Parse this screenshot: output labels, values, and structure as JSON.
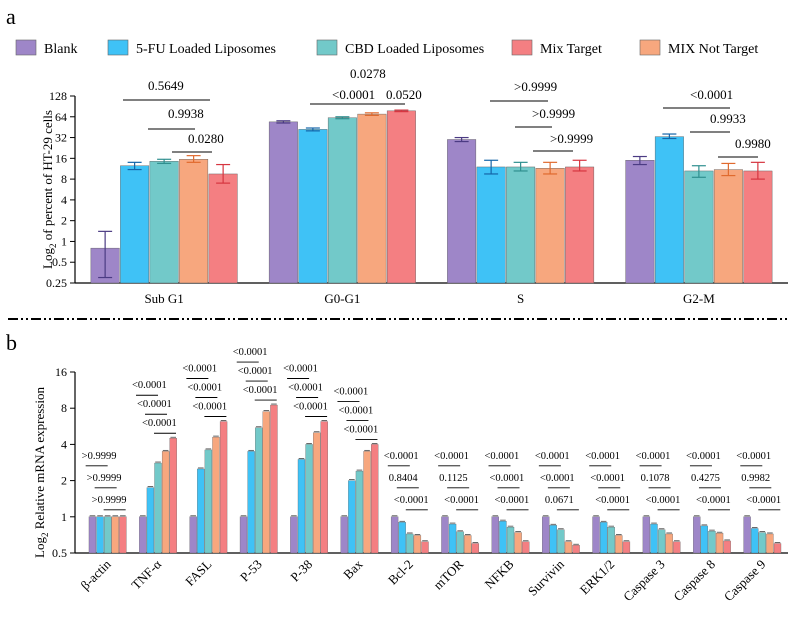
{
  "panel_a_letter": "a",
  "panel_b_letter": "b",
  "chart_data": [
    {
      "type": "bar",
      "panel": "a",
      "ylabel_main": "Log",
      "ylabel_sub": "2",
      "ylabel_rest": " of percent of  HT-29 cells",
      "yscale": "log2",
      "ylim": [
        0.25,
        128
      ],
      "yticks": [
        "0.25",
        "0.5",
        "1",
        "2",
        "4",
        "8",
        "16",
        "32",
        "64",
        "128"
      ],
      "categories": [
        "Sub G1",
        "G0-G1",
        "S",
        "G2-M"
      ],
      "series": [
        {
          "name": "Blank",
          "color": "#9e86c8",
          "values": [
            0.8,
            54,
            30,
            15
          ],
          "err_low": [
            0.3,
            52,
            28,
            13
          ],
          "err_high": [
            1.4,
            56,
            32,
            17
          ]
        },
        {
          "name": "5-FU Loaded Liposomes",
          "color": "#3fc2f6",
          "values": [
            12.5,
            42,
            12,
            33
          ],
          "err_low": [
            11,
            40,
            9.5,
            31
          ],
          "err_high": [
            14,
            44,
            15,
            36
          ]
        },
        {
          "name": "CBD Loaded Liposomes",
          "color": "#72c9c9",
          "values": [
            14.5,
            62,
            12,
            10.5
          ],
          "err_low": [
            13.5,
            60,
            10.5,
            8.5
          ],
          "err_high": [
            15.5,
            64,
            14,
            12.5
          ]
        },
        {
          "name": "MIX Not Target",
          "color": "#f7a77e",
          "values": [
            15.5,
            70,
            11.5,
            11
          ],
          "err_low": [
            14,
            67,
            9.5,
            9
          ],
          "err_high": [
            17.5,
            73,
            14,
            13.5
          ]
        },
        {
          "name": "Mix Target",
          "color": "#f47f82",
          "values": [
            9.5,
            78,
            12,
            10.5
          ],
          "err_low": [
            7,
            76,
            10.5,
            8
          ],
          "err_high": [
            13,
            80,
            15,
            14
          ]
        }
      ],
      "legend_order": [
        "Blank",
        "5-FU Loaded Liposomes",
        "CBD Loaded Liposomes",
        "Mix Target",
        "MIX  Not Target"
      ],
      "legend_placement": "top",
      "annotations": [
        {
          "text": "0.5649",
          "group": 0
        },
        {
          "text": "0.9938",
          "group": 0
        },
        {
          "text": "0.0280",
          "group": 0
        },
        {
          "text": "0.0278",
          "group": 1
        },
        {
          "text": "<0.0001",
          "group": 1
        },
        {
          "text": "0.0520",
          "group": 1
        },
        {
          "text": ">0.9999",
          "group": 2
        },
        {
          "text": ">0.9999",
          "group": 2
        },
        {
          "text": ">0.9999",
          "group": 2
        },
        {
          "text": "<0.0001",
          "group": 3
        },
        {
          "text": "0.9933",
          "group": 3
        },
        {
          "text": "0.9980",
          "group": 3
        }
      ]
    },
    {
      "type": "bar",
      "panel": "b",
      "ylabel_main": "Log",
      "ylabel_sub": "2",
      "ylabel_rest": " Relative mRNA expression",
      "yscale": "log2",
      "ylim": [
        0.5,
        16
      ],
      "yticks": [
        "0.5",
        "1",
        "2",
        "4",
        "8",
        "16"
      ],
      "categories": [
        "β-actin",
        "TNF-α",
        "FASL",
        "P-53",
        "P-38",
        "Bax",
        "Bcl-2",
        "mTOR",
        "NFKB",
        "Survivin",
        "ERK1/2",
        "Caspase 3",
        "Caspase 8",
        "Caspase 9"
      ],
      "series": [
        {
          "name": "Blank",
          "color": "#9e86c8",
          "values": [
            1,
            1,
            1,
            1,
            1,
            1,
            1,
            1,
            1,
            1,
            1,
            1,
            1,
            1
          ]
        },
        {
          "name": "5-FU Loaded Liposomes",
          "color": "#3fc2f6",
          "values": [
            1,
            1.75,
            2.5,
            3.5,
            3.0,
            2.0,
            0.9,
            0.87,
            0.92,
            0.85,
            0.9,
            0.87,
            0.84,
            0.8
          ]
        },
        {
          "name": "CBD Loaded Liposomes",
          "color": "#72c9c9",
          "values": [
            1,
            2.8,
            3.6,
            5.5,
            4.0,
            2.4,
            0.72,
            0.75,
            0.82,
            0.78,
            0.82,
            0.78,
            0.76,
            0.74
          ]
        },
        {
          "name": "MIX Not Target",
          "color": "#f7a77e",
          "values": [
            1,
            3.5,
            4.6,
            7.5,
            5.0,
            3.5,
            0.7,
            0.7,
            0.74,
            0.62,
            0.7,
            0.72,
            0.73,
            0.72
          ]
        },
        {
          "name": "Mix Target",
          "color": "#f47f82",
          "values": [
            1,
            4.5,
            6.2,
            8.5,
            6.2,
            4.0,
            0.62,
            0.6,
            0.62,
            0.58,
            0.62,
            0.62,
            0.63,
            0.6
          ]
        }
      ],
      "annotations": [
        {
          "group": 0,
          "texts": [
            ">0.9999",
            ">0.9999",
            ">0.9999"
          ]
        },
        {
          "group": 1,
          "texts": [
            "<0.0001",
            "<0.0001",
            "<0.0001"
          ]
        },
        {
          "group": 2,
          "texts": [
            "<0.0001",
            "<0.0001",
            "<0.0001"
          ]
        },
        {
          "group": 3,
          "texts": [
            "<0.0001",
            "<0.0001",
            "<0.0001"
          ]
        },
        {
          "group": 4,
          "texts": [
            "<0.0001",
            "<0.0001",
            "<0.0001"
          ]
        },
        {
          "group": 5,
          "texts": [
            "<0.0001",
            "<0.0001",
            "<0.0001"
          ]
        },
        {
          "group": 6,
          "texts": [
            "<0.0001",
            "0.8404",
            "<0.0001"
          ]
        },
        {
          "group": 7,
          "texts": [
            "<0.0001",
            "0.1125",
            "<0.0001"
          ]
        },
        {
          "group": 8,
          "texts": [
            "<0.0001",
            "<0.0001",
            "<0.0001"
          ]
        },
        {
          "group": 9,
          "texts": [
            "<0.0001",
            "<0.0001",
            "0.0671"
          ]
        },
        {
          "group": 10,
          "texts": [
            "<0.0001",
            "<0.0001",
            "<0.0001"
          ]
        },
        {
          "group": 11,
          "texts": [
            "<0.0001",
            "0.1078",
            "<0.0001"
          ]
        },
        {
          "group": 12,
          "texts": [
            "<0.0001",
            "0.4275",
            "<0.0001"
          ]
        },
        {
          "group": 13,
          "texts": [
            "<0.0001",
            "0.9982",
            "<0.0001"
          ]
        }
      ]
    }
  ]
}
